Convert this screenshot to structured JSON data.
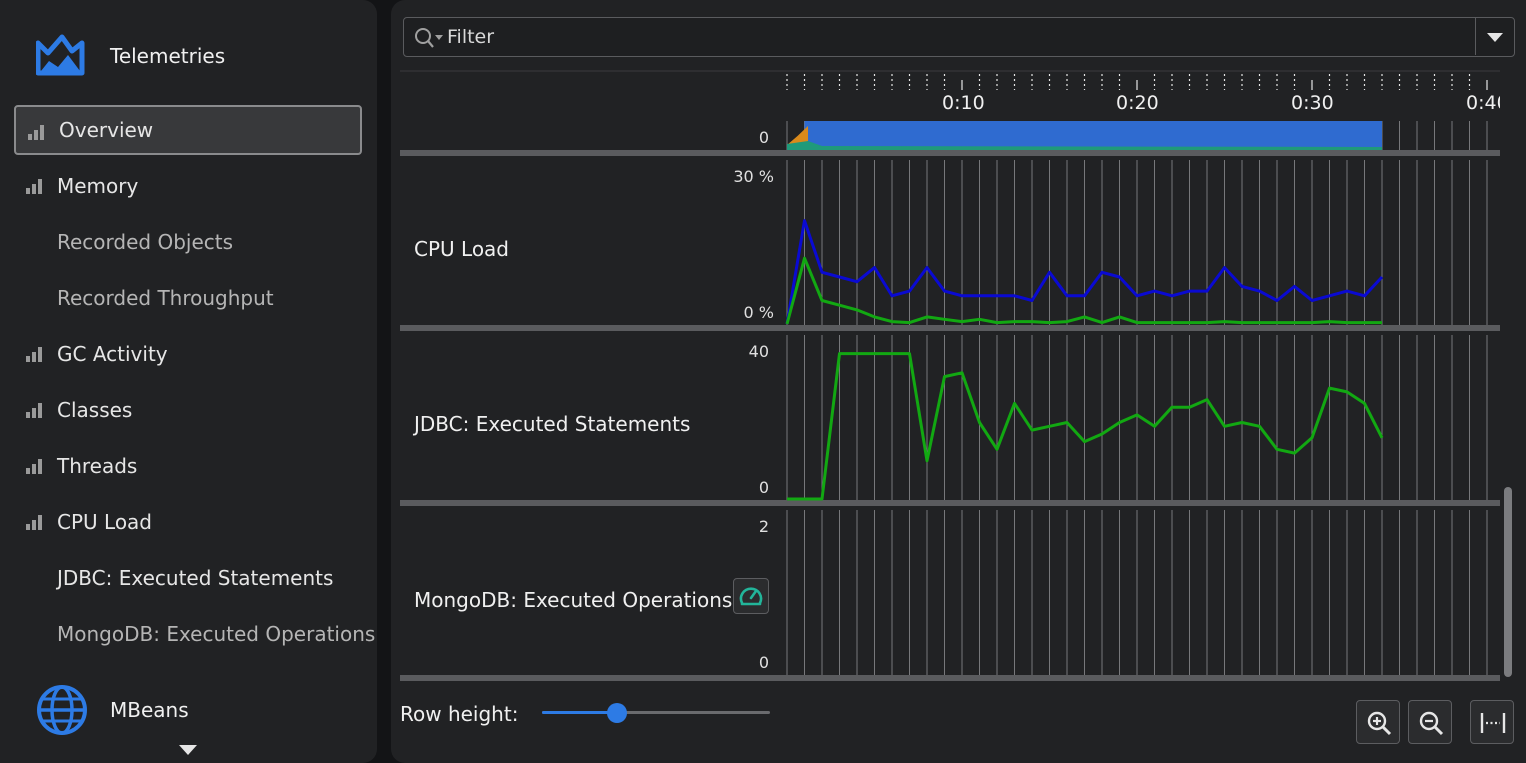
{
  "sidebar": {
    "telemetries_label": "Telemetries",
    "mbeans_label": "MBeans",
    "items": [
      {
        "label": "Overview",
        "icon": "bar-chart-icon"
      },
      {
        "label": "Memory",
        "icon": "bar-chart-icon"
      },
      {
        "label": "Recorded Objects"
      },
      {
        "label": "Recorded Throughput"
      },
      {
        "label": "GC Activity",
        "icon": "bar-chart-icon"
      },
      {
        "label": "Classes",
        "icon": "bar-chart-icon"
      },
      {
        "label": "Threads",
        "icon": "bar-chart-icon"
      },
      {
        "label": "CPU Load",
        "icon": "bar-chart-icon"
      },
      {
        "label": "JDBC: Executed Statements"
      },
      {
        "label": "MongoDB: Executed Operations"
      }
    ],
    "selected": "Overview"
  },
  "filter": {
    "placeholder": "Filter"
  },
  "timeline": {
    "ticks": [
      "0:10",
      "0:20",
      "0:30",
      "0:40"
    ]
  },
  "rows": [
    {
      "label": "",
      "ymax": "",
      "ymin": "0"
    },
    {
      "label": "CPU Load",
      "ymax": "30 %",
      "ymin": "0 %"
    },
    {
      "label": "JDBC: Executed Statements",
      "ymax": "40",
      "ymin": "0"
    },
    {
      "label": "MongoDB: Executed Operations",
      "ymax": "2",
      "ymin": "0"
    }
  ],
  "footer": {
    "row_height_label": "Row height:",
    "row_height_value": 0.33
  },
  "colors": {
    "accent": "#2d7be5",
    "cpu_blue": "#0a0ad2",
    "green": "#12a812",
    "overview_blue": "#2f6bd0",
    "overview_orange": "#d98a1c",
    "overview_teal": "#1f9a7a"
  },
  "chart_data": {
    "type": "line",
    "x_unit": "seconds",
    "x_ticks": [
      "0:10",
      "0:20",
      "0:30",
      "0:40"
    ],
    "x": [
      0,
      1,
      2,
      3,
      4,
      5,
      6,
      7,
      8,
      9,
      10,
      11,
      12,
      13,
      14,
      15,
      16,
      17,
      18,
      19,
      20,
      21,
      22,
      23,
      24,
      25,
      26,
      27,
      28,
      29,
      30,
      31,
      32,
      33,
      34
    ],
    "series": [
      {
        "chart": "CPU Load",
        "color": "#0a0ad2",
        "ylim": [
          0,
          30
        ],
        "values": [
          0,
          22,
          11,
          10,
          9,
          12,
          6,
          7,
          12,
          7,
          6,
          6,
          6,
          6,
          5,
          11,
          6,
          6,
          11,
          10,
          6,
          7,
          6,
          7,
          7,
          12,
          8,
          7,
          5,
          8,
          5,
          6,
          7,
          6,
          10
        ]
      },
      {
        "chart": "CPU Load",
        "color": "#12a812",
        "ylim": [
          0,
          30
        ],
        "values": [
          0,
          14,
          5,
          4,
          3,
          1.5,
          0.5,
          0.3,
          1.5,
          1,
          0.5,
          1,
          0.3,
          0.5,
          0.5,
          0.3,
          0.5,
          1.5,
          0.3,
          1.5,
          0.3,
          0.3,
          0.3,
          0.3,
          0.3,
          0.5,
          0.3,
          0.3,
          0.3,
          0.3,
          0.3,
          0.5,
          0.3,
          0.3,
          0.3
        ]
      },
      {
        "chart": "JDBC: Executed Statements",
        "color": "#12a812",
        "ylim": [
          0,
          40
        ],
        "values": [
          0,
          0,
          0,
          38,
          38,
          38,
          38,
          38,
          10,
          32,
          33,
          20,
          13,
          25,
          18,
          19,
          20,
          15,
          17,
          20,
          22,
          19,
          24,
          24,
          26,
          19,
          20,
          19,
          13,
          12,
          16,
          29,
          28,
          25,
          16
        ]
      }
    ]
  }
}
